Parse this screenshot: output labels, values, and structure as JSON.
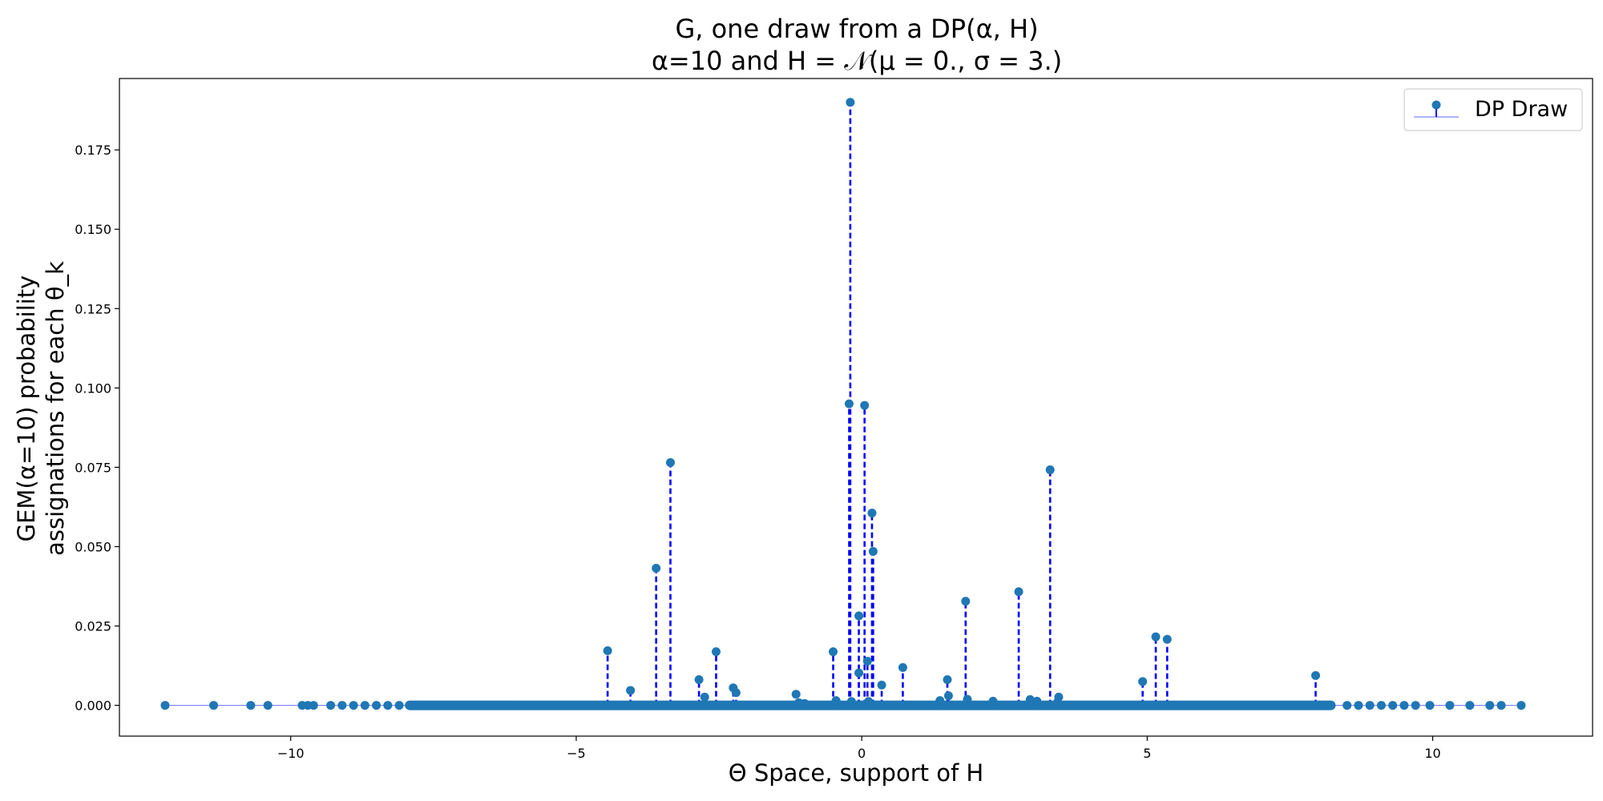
{
  "chart_data": {
    "type": "stem",
    "title_line1": "G, one draw from a DP(α, H)",
    "title_line2": "α=10 and H = 𝒩(μ = 0., σ = 3.)",
    "xlabel": "Θ Space, support of H",
    "ylabel_line1": "GEM(α=10) probability",
    "ylabel_line2": "assignations for each θ_k",
    "xlim": [
      -13.0,
      12.8
    ],
    "ylim": [
      -0.0097,
      0.1975
    ],
    "xticks": [
      -10,
      -5,
      0,
      5,
      10
    ],
    "xtick_labels": [
      "−10",
      "−5",
      "0",
      "5",
      "10"
    ],
    "yticks": [
      0.0,
      0.025,
      0.05,
      0.075,
      0.1,
      0.125,
      0.15,
      0.175
    ],
    "ytick_labels": [
      "0.000",
      "0.025",
      "0.050",
      "0.075",
      "0.100",
      "0.125",
      "0.150",
      "0.175"
    ],
    "legend": {
      "label": "DP Draw",
      "position": "top-right"
    },
    "colors": {
      "stem": "#0000ff",
      "marker": "#1f77b4",
      "baseline": "#8080ff"
    },
    "series": [
      {
        "x": [
          -0.2,
          0.05,
          -0.22,
          -3.35,
          3.3,
          -3.6,
          0.18,
          0.2,
          2.75,
          1.82,
          -0.05,
          5.15,
          5.35,
          -4.45,
          -2.55,
          -0.5,
          0.1,
          0.72,
          -0.05,
          1.5,
          -2.85,
          4.92,
          7.95,
          0.35,
          -2.25,
          -4.05,
          -1.15,
          -2.2,
          1.52,
          -2.75,
          3.45,
          2.95,
          3.07,
          1.37,
          1.85,
          2.3,
          -0.45,
          -0.18,
          3.43,
          -1.1,
          0.12,
          -1.0,
          -12.2,
          -11.35,
          -10.7,
          -10.4,
          -9.8,
          -9.7,
          -9.6,
          -9.3,
          -9.1,
          -8.9,
          -8.7,
          -8.5,
          -8.3,
          -8.1,
          8.5,
          8.7,
          8.9,
          9.1,
          9.3,
          9.5,
          9.7,
          9.95,
          10.3,
          10.65,
          11.0,
          11.2,
          11.55
        ],
        "y": [
          0.19,
          0.0945,
          0.095,
          0.0765,
          0.0742,
          0.0432,
          0.0606,
          0.0485,
          0.0358,
          0.0328,
          0.0282,
          0.0216,
          0.0208,
          0.0172,
          0.0169,
          0.0169,
          0.0139,
          0.0119,
          0.0102,
          0.0081,
          0.0081,
          0.0075,
          0.0094,
          0.0064,
          0.0055,
          0.0047,
          0.0035,
          0.004,
          0.003,
          0.0026,
          0.0026,
          0.0018,
          0.0013,
          0.0015,
          0.0019,
          0.0013,
          0.0015,
          0.0012,
          0.001,
          0.0008,
          0.0012,
          0.0006,
          0.0,
          0.0,
          0.0,
          0.0,
          0.0,
          0.0,
          0.0,
          0.0,
          0.0,
          0.0,
          0.0,
          0.0,
          0.0,
          0.0,
          0.0,
          0.0,
          0.0,
          0.0,
          0.0,
          0.0,
          0.0,
          0.0,
          0.0,
          0.0,
          0.0,
          0.0,
          0.0
        ]
      }
    ]
  }
}
